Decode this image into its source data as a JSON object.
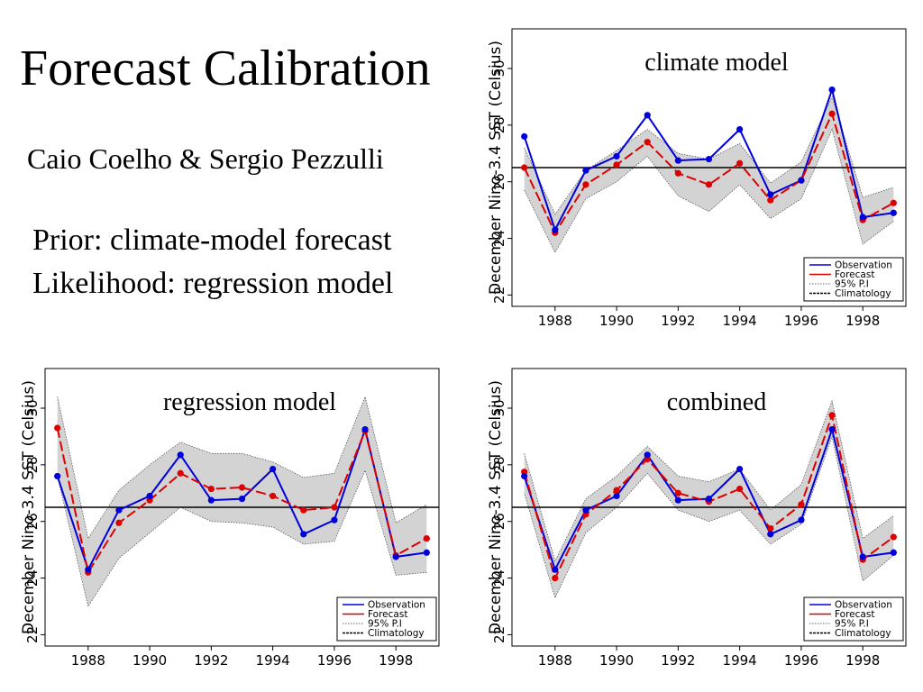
{
  "slide": {
    "title": "Forecast Calibration",
    "authors": "Caio Coelho & Sergio Pezzulli",
    "lines": [
      "Prior: climate-model forecast",
      "Likelihood: regression model"
    ]
  },
  "colors": {
    "observation": "#0000dd",
    "forecast": "#dd0000",
    "band": "#d3d3d3",
    "climatology": "#000000"
  },
  "chart_data": [
    {
      "type": "line",
      "title": "climate model",
      "ylabel": "December Nino-3.4 SST (Celsius)",
      "xlabel": "",
      "x": [
        1987,
        1988,
        1989,
        1990,
        1991,
        1992,
        1993,
        1994,
        1995,
        1996,
        1997,
        1998,
        1999
      ],
      "xticks": [
        "1988",
        "1990",
        "1992",
        "1994",
        "1996",
        "1998"
      ],
      "yticks": [
        "22",
        "24",
        "26",
        "28",
        "30"
      ],
      "xlim": [
        1986.6,
        1999.4
      ],
      "ylim": [
        21.6,
        31.4
      ],
      "climatology": 26.5,
      "series": [
        {
          "name": "Observation",
          "values": [
            27.6,
            24.3,
            26.4,
            26.9,
            28.35,
            26.75,
            26.8,
            27.85,
            25.55,
            26.05,
            29.25,
            24.75,
            24.9
          ]
        },
        {
          "name": "Forecast",
          "values": [
            26.5,
            24.2,
            25.9,
            26.6,
            27.4,
            26.3,
            25.9,
            26.65,
            25.35,
            26.05,
            28.4,
            24.65,
            25.25
          ]
        }
      ],
      "band": {
        "name": "95% P.I",
        "lower": [
          25.7,
          23.5,
          25.4,
          26.0,
          26.9,
          25.5,
          24.95,
          25.9,
          24.7,
          25.4,
          27.85,
          23.8,
          24.6
        ],
        "upper": [
          27.2,
          24.85,
          26.4,
          27.1,
          27.85,
          27.0,
          26.8,
          27.35,
          25.95,
          26.7,
          29.0,
          25.45,
          25.8
        ]
      },
      "legend": [
        "Observation",
        "Forecast",
        "95% P.I",
        "Climatology"
      ],
      "legend_position": "bottom-right"
    },
    {
      "type": "line",
      "title": "regression model",
      "ylabel": "December Nino-3.4 SST (Celsius)",
      "xlabel": "",
      "x": [
        1987,
        1988,
        1989,
        1990,
        1991,
        1992,
        1993,
        1994,
        1995,
        1996,
        1997,
        1998,
        1999
      ],
      "xticks": [
        "1988",
        "1990",
        "1992",
        "1994",
        "1996",
        "1998"
      ],
      "yticks": [
        "22",
        "24",
        "26",
        "28",
        "30"
      ],
      "xlim": [
        1986.6,
        1999.4
      ],
      "ylim": [
        21.6,
        31.4
      ],
      "climatology": 26.5,
      "series": [
        {
          "name": "Observation",
          "values": [
            27.6,
            24.3,
            26.4,
            26.9,
            28.35,
            26.75,
            26.8,
            27.85,
            25.55,
            26.05,
            29.25,
            24.75,
            24.9
          ]
        },
        {
          "name": "Forecast",
          "values": [
            29.3,
            24.2,
            25.95,
            26.75,
            27.7,
            27.15,
            27.2,
            26.9,
            26.4,
            26.5,
            29.2,
            24.8,
            25.4
          ]
        }
      ],
      "band": {
        "name": "95% P.I",
        "lower": [
          27.6,
          23.0,
          24.7,
          25.6,
          26.5,
          26.0,
          25.95,
          25.8,
          25.2,
          25.3,
          27.8,
          24.1,
          24.2
        ],
        "upper": [
          30.4,
          25.4,
          27.1,
          28.0,
          28.8,
          28.4,
          28.4,
          28.1,
          27.55,
          27.7,
          30.4,
          25.95,
          26.6
        ]
      },
      "legend": [
        "Observation",
        "Forecast",
        "95% P.I",
        "Climatology"
      ],
      "legend_position": "bottom-right"
    },
    {
      "type": "line",
      "title": "combined",
      "ylabel": "December Nino-3.4 SST (Celsius)",
      "xlabel": "",
      "x": [
        1987,
        1988,
        1989,
        1990,
        1991,
        1992,
        1993,
        1994,
        1995,
        1996,
        1997,
        1998,
        1999
      ],
      "xticks": [
        "1988",
        "1990",
        "1992",
        "1994",
        "1996",
        "1998"
      ],
      "yticks": [
        "22",
        "24",
        "26",
        "28",
        "30"
      ],
      "xlim": [
        1986.6,
        1999.4
      ],
      "ylim": [
        21.6,
        31.4
      ],
      "climatology": 26.5,
      "series": [
        {
          "name": "Observation",
          "values": [
            27.6,
            24.3,
            26.4,
            26.9,
            28.35,
            26.75,
            26.8,
            27.85,
            25.55,
            26.05,
            29.25,
            24.75,
            24.9
          ]
        },
        {
          "name": "Forecast",
          "values": [
            27.75,
            24.0,
            26.25,
            27.1,
            28.2,
            27.0,
            26.7,
            27.15,
            25.75,
            26.6,
            29.75,
            24.65,
            25.45
          ]
        }
      ],
      "band": {
        "name": "95% P.I",
        "lower": [
          27.0,
          23.3,
          25.6,
          26.5,
          27.7,
          26.4,
          26.0,
          26.4,
          25.2,
          25.9,
          29.0,
          23.9,
          24.8
        ],
        "upper": [
          28.4,
          24.6,
          26.8,
          27.6,
          28.65,
          27.6,
          27.4,
          27.85,
          26.4,
          27.3,
          30.25,
          25.4,
          26.2
        ]
      },
      "legend": [
        "Observation",
        "Forecast",
        "95% P.I",
        "Climatology"
      ],
      "legend_position": "bottom-right"
    }
  ]
}
